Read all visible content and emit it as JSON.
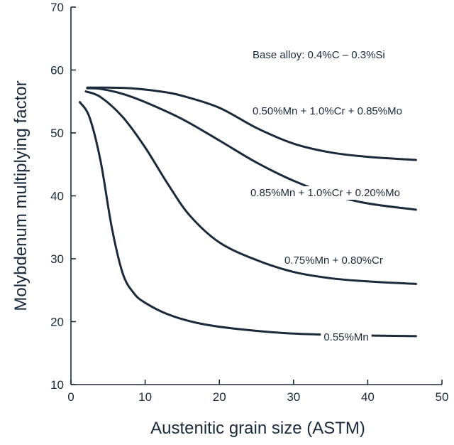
{
  "chart_data": {
    "type": "line",
    "title": "",
    "xlabel": "Austenitic grain size (ASTM)",
    "ylabel": "Molybdenum multiplying factor",
    "xlim": [
      0,
      50
    ],
    "ylim": [
      10,
      70
    ],
    "xticks": [
      0,
      10,
      20,
      30,
      40,
      50
    ],
    "yticks": [
      10,
      20,
      30,
      40,
      50,
      60,
      70
    ],
    "grid": false,
    "note": "Base alloy: 0.4%C – 0.3%Si",
    "color": "#1b2a3a",
    "series": [
      {
        "name": "0.50%Mn + 1.0%Cr + 0.85%Mo",
        "x": [
          2.2,
          5,
          8,
          12,
          15,
          20,
          25,
          30,
          35,
          40,
          46.5
        ],
        "y": [
          57.2,
          57.2,
          57.1,
          56.6,
          55.9,
          54.0,
          50.8,
          48.3,
          46.9,
          46.2,
          45.7
        ]
      },
      {
        "name": "0.85%Mn + 1.0%Cr + 0.20%Mo",
        "x": [
          2.2,
          4,
          7,
          10,
          15,
          20,
          25,
          30,
          35,
          40,
          46.5
        ],
        "y": [
          57.1,
          57.0,
          56.2,
          54.9,
          52.2,
          48.8,
          45.3,
          42.4,
          40.2,
          38.8,
          37.8
        ]
      },
      {
        "name": "0.75%Mn + 0.80%Cr",
        "x": [
          2.0,
          4,
          7,
          10,
          13,
          16,
          20,
          25,
          30,
          35,
          40,
          46.5
        ],
        "y": [
          56.6,
          55.7,
          52.5,
          47.7,
          42.0,
          36.9,
          32.6,
          29.8,
          27.9,
          26.9,
          26.4,
          26.0
        ]
      },
      {
        "name": "0.55%Mn",
        "x": [
          1.2,
          2.5,
          4,
          5.5,
          7,
          8.5,
          10,
          13,
          17,
          22,
          30,
          40,
          46.5
        ],
        "y": [
          54.9,
          52.5,
          45.5,
          35.0,
          27.6,
          24.5,
          23.0,
          21.2,
          19.8,
          18.9,
          18.1,
          17.8,
          17.7
        ]
      }
    ]
  }
}
